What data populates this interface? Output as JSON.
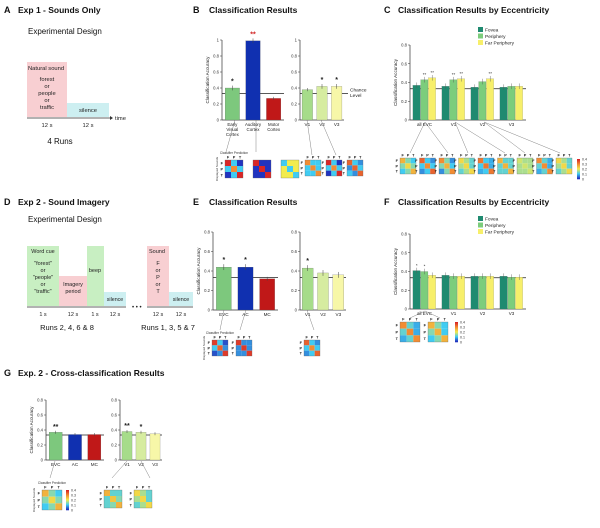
{
  "colors": {
    "ec_bar": "#7dc87d",
    "ac_bar": "#1030b0",
    "mc_bar": "#c01818",
    "v1_bar": "#a6dc8a",
    "v2_bar": "#d6eca0",
    "v3_bar": "#f7f7a8",
    "fovea": "#1f8a70",
    "periphery": "#7ccd7c",
    "far_periphery": "#f7ef6a",
    "sound_box": "#f8cfd2",
    "silence_box": "#cdeff1",
    "cue_box": "#c8efc2",
    "imagery_box": "#f8cfd2",
    "beep_box": "#c8efc2"
  },
  "panelA": {
    "letter": "A",
    "title": "Exp 1 - Sounds Only",
    "subtitle": "Experimental Design",
    "sound_header": "Natural sound",
    "sound_lines": [
      "forest",
      "or",
      "people",
      "or",
      "traffic"
    ],
    "silence": "silence",
    "durations": [
      "12 s",
      "12 s"
    ],
    "time_label": "time",
    "runs": "4 Runs"
  },
  "panelD": {
    "letter": "D",
    "title": "Exp 2 - Sound Imagery",
    "subtitle": "Experimental Design",
    "cue_header": "Word cue",
    "cue_lines": [
      "\"forest\"",
      "or",
      "\"people\"",
      "or",
      "\"traffic\""
    ],
    "imagery": [
      "Imagery",
      "period"
    ],
    "beep": "beep",
    "silence": "silence",
    "sound_header": "Sound",
    "sound_lines": [
      "F",
      "or",
      "P",
      "or",
      "T"
    ],
    "dur_left": [
      "1 s",
      "12 s",
      "1 s",
      "12 s"
    ],
    "dur_right": [
      "12 s",
      "12 s"
    ],
    "dots": "• • •",
    "runs_left": "Runs 2, 4, 6 & 8",
    "runs_right": "Runs 1, 3, 5 & 7"
  },
  "chart_data": [
    {
      "id": "B-left",
      "panel": "B",
      "type": "bar",
      "title": "Classification Results",
      "ylabel": "Classification Accuracy",
      "ylim": [
        0,
        1
      ],
      "yticks": [
        "0",
        "0.2",
        "0.4",
        "0.6",
        "0.8",
        "1"
      ],
      "chance": 0.333,
      "categories": [
        "Early Visual Cortex",
        "Auditory Cortex",
        "Motor Cortex"
      ],
      "tick_lines": [
        [
          "Early",
          "Visual",
          "Cortex"
        ],
        [
          "Auditory",
          "Cortex"
        ],
        [
          "Motor",
          "Cortex"
        ]
      ],
      "values": [
        0.4,
        0.99,
        0.27
      ],
      "errors": [
        0.03,
        0.03,
        0.02
      ],
      "sig": [
        "*",
        "**",
        ""
      ],
      "sig_colors": [
        "#222222",
        "#d02020",
        "#222222"
      ]
    },
    {
      "id": "B-right",
      "panel": "B",
      "type": "bar",
      "ylim": [
        0,
        1
      ],
      "yticks": [
        "0",
        "0.2",
        "0.4",
        "0.6",
        "0.8",
        "1"
      ],
      "chance": 0.333,
      "chance_label": [
        "Chance",
        "Level"
      ],
      "categories": [
        "V1",
        "V2",
        "V3"
      ],
      "values": [
        0.38,
        0.42,
        0.42
      ],
      "errors": [
        0.02,
        0.03,
        0.03
      ],
      "sig": [
        "",
        "*",
        "*"
      ]
    },
    {
      "id": "C",
      "panel": "C",
      "type": "bar",
      "title": "Classification Results by Eccentricity",
      "ylabel": "Classification Accuracy",
      "ylim": [
        0,
        0.8
      ],
      "yticks": [
        "0",
        "0.2",
        "0.4",
        "0.6",
        "0.8"
      ],
      "chance": 0.333,
      "categories": [
        "all EVC",
        "V1",
        "V2",
        "V3"
      ],
      "series": [
        {
          "name": "Fovea",
          "values": [
            0.37,
            0.36,
            0.35,
            0.35
          ]
        },
        {
          "name": "Periphery",
          "values": [
            0.43,
            0.43,
            0.41,
            0.36
          ]
        },
        {
          "name": "Far Periphery",
          "values": [
            0.45,
            0.44,
            0.44,
            0.36
          ]
        }
      ],
      "sig": [
        [
          "",
          "**",
          "**"
        ],
        [
          "",
          "**",
          "**"
        ],
        [
          "",
          "",
          "**"
        ],
        [
          "",
          "",
          ""
        ]
      ]
    },
    {
      "id": "E-left",
      "panel": "E",
      "type": "bar",
      "title": "Classification Results",
      "ylabel": "Classification Accuracy",
      "ylim": [
        0,
        0.8
      ],
      "yticks": [
        "0",
        "0.2",
        "0.4",
        "0.6",
        "0.8"
      ],
      "chance": 0.333,
      "categories": [
        "EVC",
        "AC",
        "MC"
      ],
      "values": [
        0.44,
        0.44,
        0.32
      ],
      "errors": [
        0.03,
        0.03,
        0.02
      ],
      "sig": [
        "*",
        "*",
        ""
      ]
    },
    {
      "id": "E-right",
      "panel": "E",
      "type": "bar",
      "ylim": [
        0,
        0.8
      ],
      "yticks": [
        "0",
        "0.2",
        "0.4",
        "0.6",
        "0.8"
      ],
      "chance": 0.333,
      "categories": [
        "V1",
        "V2",
        "V3"
      ],
      "values": [
        0.43,
        0.38,
        0.36
      ],
      "errors": [
        0.03,
        0.03,
        0.03
      ],
      "sig": [
        "*",
        "",
        ""
      ]
    },
    {
      "id": "F",
      "panel": "F",
      "type": "bar",
      "title": "Classification Results by Eccentricity",
      "ylabel": "Classification Accuracy",
      "ylim": [
        0,
        0.8
      ],
      "yticks": [
        "0",
        "0.2",
        "0.4",
        "0.6",
        "0.8"
      ],
      "chance": 0.333,
      "categories": [
        "all EVC",
        "V1",
        "V2",
        "V3"
      ],
      "series": [
        {
          "name": "Fovea",
          "values": [
            0.41,
            0.36,
            0.35,
            0.35
          ]
        },
        {
          "name": "Periphery",
          "values": [
            0.4,
            0.35,
            0.35,
            0.34
          ]
        },
        {
          "name": "Far Periphery",
          "values": [
            0.36,
            0.35,
            0.35,
            0.34
          ]
        }
      ],
      "sig": [
        [
          "*",
          "*",
          ""
        ],
        [
          "",
          "",
          ""
        ],
        [
          "",
          "",
          ""
        ],
        [
          "",
          "",
          ""
        ]
      ]
    },
    {
      "id": "G-left",
      "panel": "G",
      "type": "bar",
      "title": "Exp. 2 - Cross-classification Results",
      "ylabel": "Classification Accuracy",
      "ylim": [
        0,
        0.8
      ],
      "yticks": [
        "0",
        "0.2",
        "0.4",
        "0.6",
        "0.8"
      ],
      "chance": 0.333,
      "categories": [
        "EVC",
        "AC",
        "MC"
      ],
      "values": [
        0.37,
        0.34,
        0.34
      ],
      "errors": [
        0.02,
        0.02,
        0.02
      ],
      "sig": [
        "**",
        "",
        ""
      ]
    },
    {
      "id": "G-right",
      "panel": "G",
      "type": "bar",
      "ylim": [
        0,
        0.8
      ],
      "yticks": [
        "0",
        "0.2",
        "0.4",
        "0.6",
        "0.8"
      ],
      "chance": 0.333,
      "categories": [
        "V1",
        "V2",
        "V3"
      ],
      "values": [
        0.38,
        0.37,
        0.35
      ],
      "errors": [
        0.02,
        0.02,
        0.02
      ],
      "sig": [
        "**",
        "*",
        ""
      ]
    }
  ],
  "matrices": {
    "pred_label": "Classifier Prediction",
    "true_label": "Displayed Sounds",
    "axis_letters": [
      "F",
      "P",
      "T"
    ],
    "colorbar_ticks": [
      "0.4",
      "0.3",
      "0.2",
      "0.1",
      "0"
    ],
    "B": [
      [
        [
          0.45,
          0.3,
          0.25
        ],
        [
          0.3,
          0.4,
          0.3
        ],
        [
          0.25,
          0.3,
          0.45
        ]
      ],
      [
        [
          0.95,
          0.03,
          0.02
        ],
        [
          0.03,
          0.95,
          0.02
        ],
        [
          0.02,
          0.02,
          0.96
        ]
      ],
      [
        [
          0.3,
          0.35,
          0.35
        ],
        [
          0.35,
          0.3,
          0.35
        ],
        [
          0.35,
          0.35,
          0.3
        ]
      ],
      [
        [
          0.4,
          0.3,
          0.3
        ],
        [
          0.3,
          0.4,
          0.3
        ],
        [
          0.3,
          0.3,
          0.4
        ]
      ],
      [
        [
          0.45,
          0.3,
          0.25
        ],
        [
          0.3,
          0.4,
          0.3
        ],
        [
          0.25,
          0.3,
          0.45
        ]
      ],
      [
        [
          0.42,
          0.3,
          0.28
        ],
        [
          0.28,
          0.42,
          0.3
        ],
        [
          0.3,
          0.28,
          0.42
        ]
      ]
    ],
    "C": [
      [
        [
          0.38,
          0.32,
          0.3
        ],
        [
          0.32,
          0.36,
          0.32
        ],
        [
          0.3,
          0.32,
          0.38
        ]
      ],
      [
        [
          0.42,
          0.3,
          0.28
        ],
        [
          0.3,
          0.4,
          0.3
        ],
        [
          0.28,
          0.3,
          0.42
        ]
      ],
      [
        [
          0.4,
          0.32,
          0.28
        ],
        [
          0.32,
          0.38,
          0.3
        ],
        [
          0.28,
          0.32,
          0.4
        ]
      ],
      [
        [
          0.36,
          0.33,
          0.31
        ],
        [
          0.33,
          0.36,
          0.31
        ],
        [
          0.31,
          0.33,
          0.36
        ]
      ],
      [
        [
          0.41,
          0.3,
          0.29
        ],
        [
          0.3,
          0.41,
          0.29
        ],
        [
          0.29,
          0.3,
          0.41
        ]
      ],
      [
        [
          0.38,
          0.31,
          0.31
        ],
        [
          0.31,
          0.38,
          0.31
        ],
        [
          0.31,
          0.31,
          0.38
        ]
      ],
      [
        [
          0.34,
          0.33,
          0.33
        ],
        [
          0.33,
          0.34,
          0.33
        ],
        [
          0.33,
          0.33,
          0.34
        ]
      ],
      [
        [
          0.4,
          0.31,
          0.29
        ],
        [
          0.31,
          0.4,
          0.29
        ],
        [
          0.29,
          0.31,
          0.4
        ]
      ],
      [
        [
          0.36,
          0.33,
          0.31
        ],
        [
          0.33,
          0.36,
          0.31
        ],
        [
          0.31,
          0.33,
          0.36
        ]
      ]
    ],
    "E": [
      [
        [
          0.44,
          0.3,
          0.26
        ],
        [
          0.3,
          0.42,
          0.28
        ],
        [
          0.26,
          0.28,
          0.44
        ]
      ],
      [
        [
          0.44,
          0.28,
          0.28
        ],
        [
          0.28,
          0.44,
          0.28
        ],
        [
          0.28,
          0.28,
          0.44
        ]
      ],
      [
        [
          0.42,
          0.3,
          0.28
        ],
        [
          0.3,
          0.4,
          0.3
        ],
        [
          0.28,
          0.3,
          0.42
        ]
      ]
    ],
    "F": [
      [
        [
          0.4,
          0.31,
          0.29
        ],
        [
          0.31,
          0.4,
          0.29
        ],
        [
          0.29,
          0.31,
          0.4
        ]
      ],
      [
        [
          0.38,
          0.32,
          0.3
        ],
        [
          0.32,
          0.38,
          0.3
        ],
        [
          0.3,
          0.32,
          0.38
        ]
      ]
    ],
    "G": [
      [
        [
          0.38,
          0.32,
          0.3
        ],
        [
          0.32,
          0.36,
          0.32
        ],
        [
          0.3,
          0.32,
          0.38
        ]
      ],
      [
        [
          0.38,
          0.31,
          0.31
        ],
        [
          0.31,
          0.37,
          0.32
        ],
        [
          0.31,
          0.32,
          0.38
        ]
      ],
      [
        [
          0.36,
          0.33,
          0.31
        ],
        [
          0.33,
          0.36,
          0.31
        ],
        [
          0.31,
          0.33,
          0.36
        ]
      ]
    ]
  },
  "legend": {
    "fovea": "Fovea",
    "periphery": "Periphery",
    "far_periphery": "Far Periphery"
  }
}
